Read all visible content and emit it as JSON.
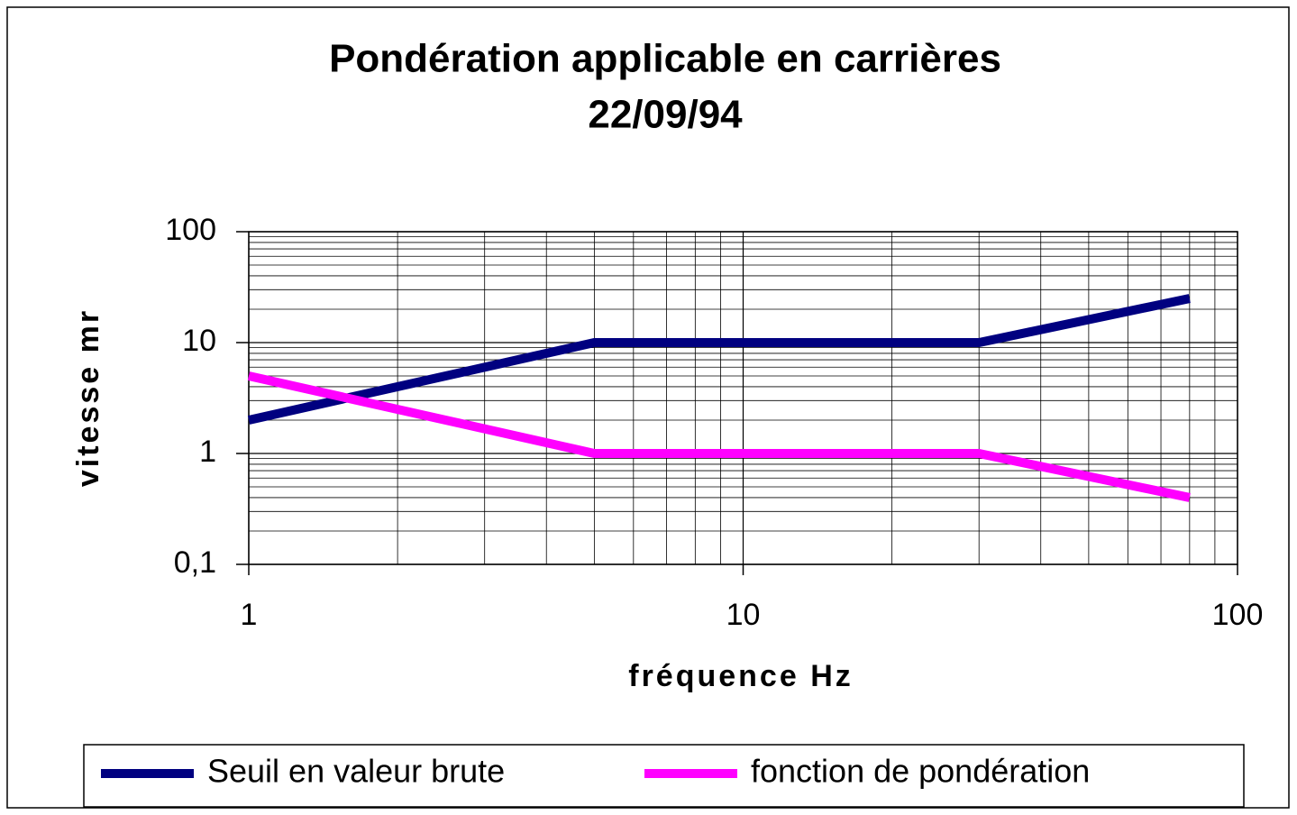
{
  "chart_data": {
    "type": "line",
    "title": [
      "Pondération applicable en carrières",
      "22/09/94"
    ],
    "x_label": "fréquence Hz",
    "y_label": "vitesse mr",
    "xlog": true,
    "ylog": true,
    "grid": true,
    "xlim": [
      1,
      100
    ],
    "xticks": [
      1,
      10,
      100
    ],
    "ylim": [
      0.1,
      100
    ],
    "yticks": [
      {
        "value": 0.1,
        "label": "0,1"
      },
      1,
      10,
      100
    ],
    "legend": "bottom",
    "series": [
      {
        "name": "Seuil en valeur brute",
        "color": "#000080",
        "x": [
          1,
          5,
          30,
          80
        ],
        "values": [
          2,
          10,
          10,
          25
        ]
      },
      {
        "name": "fonction de pondération",
        "color": "#ff00ff",
        "x": [
          1,
          5,
          30,
          80
        ],
        "values": [
          5,
          1,
          1,
          0.4
        ]
      }
    ]
  }
}
